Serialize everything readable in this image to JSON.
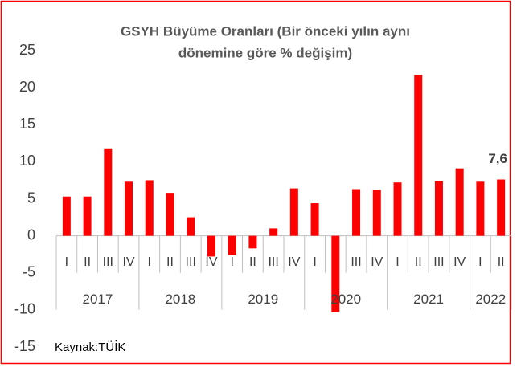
{
  "chart_data": {
    "type": "bar",
    "title": [
      "GSYH Büyüme Oranları (Bir önceki yılın aynı",
      "dönemine göre % değişim)"
    ],
    "groups": [
      {
        "label": "2017",
        "categories": [
          "I",
          "II",
          "III",
          "IV"
        ]
      },
      {
        "label": "2018",
        "categories": [
          "I",
          "II",
          "III",
          "IV"
        ]
      },
      {
        "label": "2019",
        "categories": [
          "I",
          "II",
          "III",
          "IV"
        ]
      },
      {
        "label": "2020",
        "categories": [
          "I",
          "II",
          "III",
          "IV"
        ]
      },
      {
        "label": "2021",
        "categories": [
          "I",
          "II",
          "III",
          "IV"
        ]
      },
      {
        "label": "2022",
        "categories": [
          "I",
          "II"
        ]
      }
    ],
    "values": [
      5.3,
      5.3,
      11.8,
      7.3,
      7.5,
      5.8,
      2.5,
      -2.8,
      -2.6,
      -1.7,
      1.0,
      6.4,
      4.4,
      -10.3,
      6.3,
      6.2,
      7.2,
      21.7,
      7.4,
      9.1,
      7.3,
      7.6
    ],
    "value_labels": [
      null,
      null,
      null,
      null,
      null,
      null,
      null,
      null,
      null,
      null,
      null,
      null,
      null,
      null,
      null,
      null,
      null,
      null,
      null,
      null,
      null,
      "7,6"
    ],
    "color": "#ff0000",
    "ylim": [
      -15,
      25
    ],
    "yticks": [
      -15,
      -10,
      -5,
      0,
      5,
      10,
      15,
      20,
      25
    ],
    "source": "Kaynak:TÜİK"
  }
}
